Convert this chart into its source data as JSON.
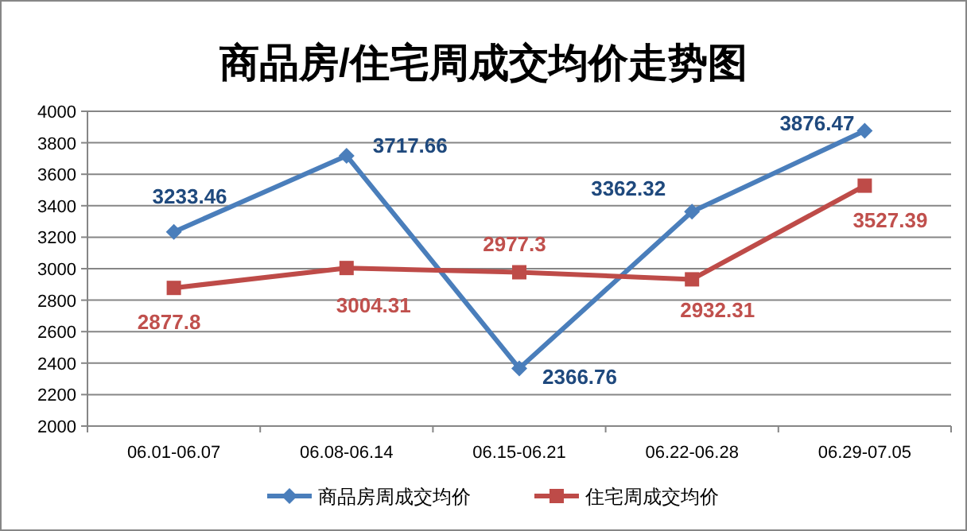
{
  "chart_data": {
    "type": "line",
    "title": "商品房/住宅周成交均价走势图",
    "categories": [
      "06.01-06.07",
      "06.08-06.14",
      "06.15-06.21",
      "06.22-06.28",
      "06.29-07.05"
    ],
    "series": [
      {
        "name": "商品房周成交均价",
        "color": "#4a7ebb",
        "marker": "diamond",
        "values": [
          3233.46,
          3717.66,
          2366.76,
          3362.32,
          3876.47
        ]
      },
      {
        "name": "住宅周成交均价",
        "color": "#be4b48",
        "marker": "square",
        "values": [
          2877.8,
          3004.31,
          2977.3,
          2932.31,
          3527.39
        ]
      }
    ],
    "ylim": [
      2000,
      4000
    ],
    "yticks": [
      2000,
      2200,
      2400,
      2600,
      2800,
      3000,
      3200,
      3400,
      3600,
      3800,
      4000
    ],
    "grid": "y",
    "legend": "bottom",
    "data_labels": true
  }
}
